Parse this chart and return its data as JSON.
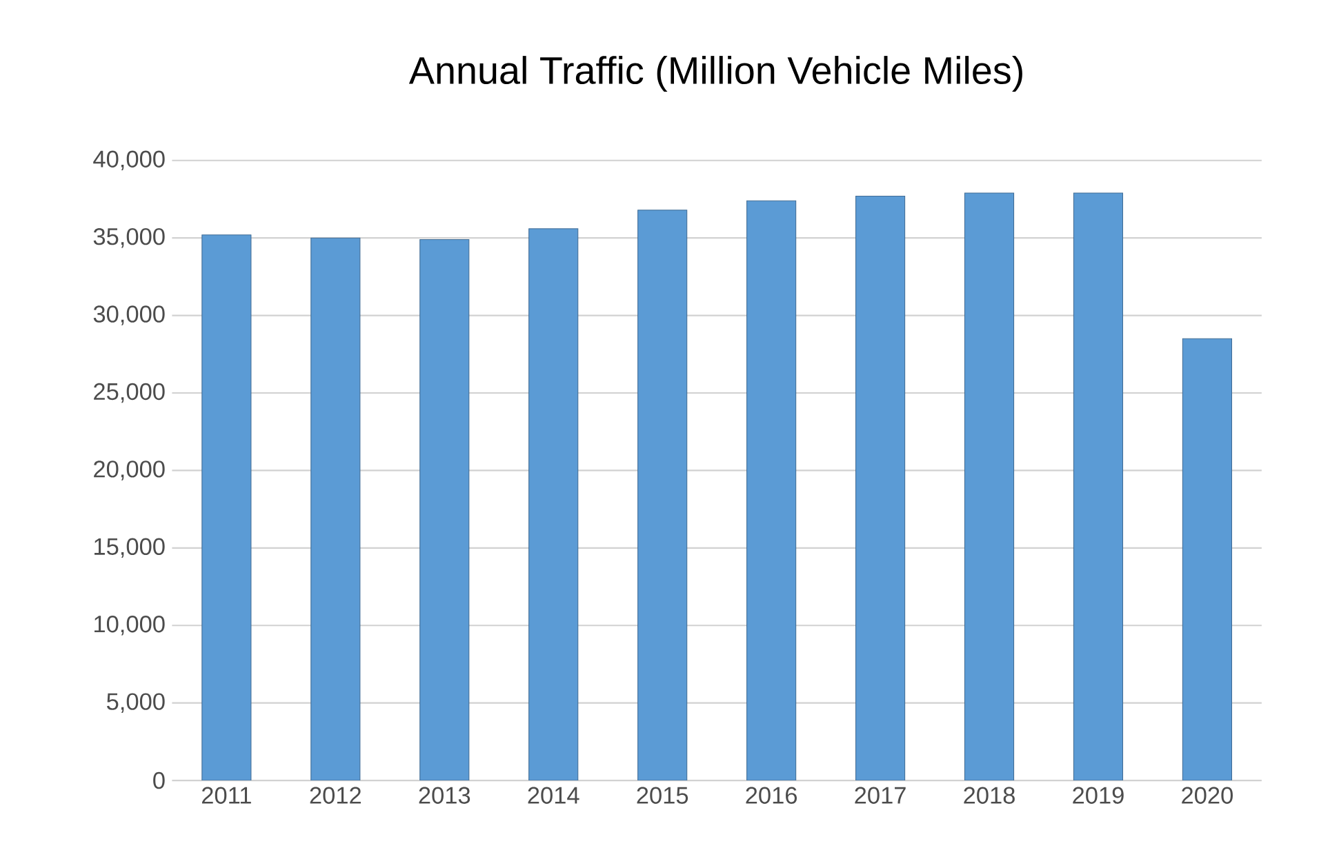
{
  "chart_data": {
    "type": "bar",
    "title": "Annual Traffic (Million Vehicle Miles)",
    "categories": [
      "2011",
      "2012",
      "2013",
      "2014",
      "2015",
      "2016",
      "2017",
      "2018",
      "2019",
      "2020"
    ],
    "values": [
      35200,
      35000,
      34900,
      35600,
      36800,
      37400,
      37700,
      37900,
      37900,
      28500
    ],
    "color": "#5b9bd5",
    "ylim": [
      0,
      40000
    ],
    "yticks": [
      {
        "value": 0,
        "label": "0"
      },
      {
        "value": 5000,
        "label": "5,000"
      },
      {
        "value": 10000,
        "label": "10,000"
      },
      {
        "value": 15000,
        "label": "15,000"
      },
      {
        "value": 20000,
        "label": "20,000"
      },
      {
        "value": 25000,
        "label": "25,000"
      },
      {
        "value": 30000,
        "label": "30,000"
      },
      {
        "value": 35000,
        "label": "35,000"
      },
      {
        "value": 40000,
        "label": "40,000"
      }
    ],
    "grid": "y"
  }
}
